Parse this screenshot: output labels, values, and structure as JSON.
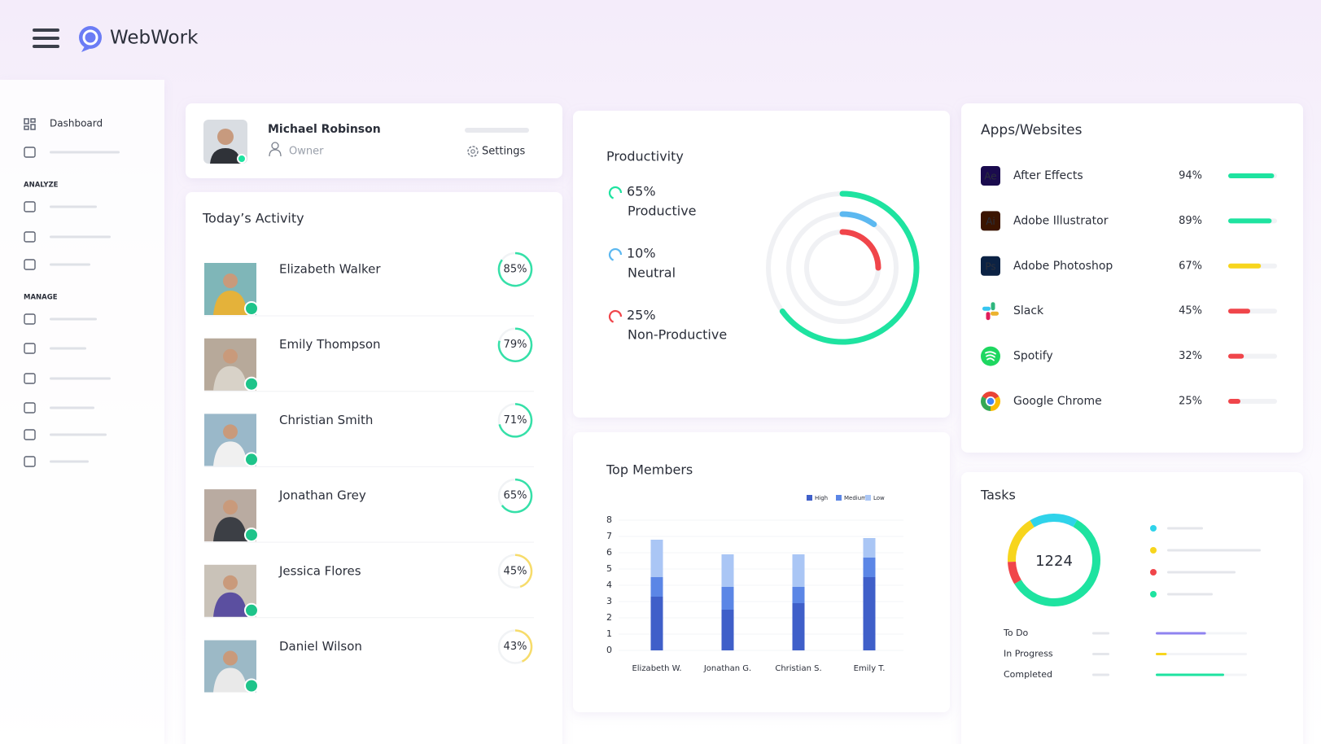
{
  "header": {
    "brand": "WebWork"
  },
  "sidebar": {
    "items": [
      "Dashboard"
    ],
    "sections": [
      "ANALYZE",
      "MANAGE"
    ]
  },
  "profile": {
    "name": "Michael Robinson",
    "role": "Owner",
    "settings": "Settings"
  },
  "activity": {
    "title": "Today’s Activity",
    "members": [
      {
        "name": "Elizabeth Walker",
        "value": 85,
        "label": "85%",
        "color": "#35e0a8"
      },
      {
        "name": "Emily Thompson",
        "value": 79,
        "label": "79%",
        "color": "#35e0a8"
      },
      {
        "name": "Christian Smith",
        "value": 71,
        "label": "71%",
        "color": "#35e0a8"
      },
      {
        "name": "Jonathan Grey",
        "value": 65,
        "label": "65%",
        "color": "#35e0a8"
      },
      {
        "name": "Jessica Flores",
        "value": 45,
        "label": "45%",
        "color": "#f7dc6a"
      },
      {
        "name": "Daniel Wilson",
        "value": 43,
        "label": "43%",
        "color": "#f7dc6a"
      }
    ]
  },
  "productivity": {
    "title": "Productivity",
    "segments": [
      {
        "name": "Productive",
        "value": 65,
        "label": "65%",
        "color": "#1ee3a0"
      },
      {
        "name": "Neutral",
        "value": 10,
        "label": "10%",
        "color": "#5cb8f0"
      },
      {
        "name": "Non-Productive",
        "value": 25,
        "label": "25%",
        "color": "#f0454a"
      }
    ]
  },
  "top_members": {
    "type": "bar",
    "title": "Top Members",
    "categories": [
      "Elizabeth W.",
      "Jonathan G.",
      "Christian S.",
      "Emily T."
    ],
    "series": [
      {
        "name": "High",
        "color": "#3f5fc9",
        "values": [
          3.3,
          2.5,
          2.9,
          4.5
        ]
      },
      {
        "name": "Medium",
        "color": "#5b86e6",
        "values": [
          1.2,
          1.4,
          1.0,
          1.2
        ]
      },
      {
        "name": "Low",
        "color": "#aac6f5",
        "values": [
          2.3,
          2.0,
          2.0,
          1.2
        ]
      }
    ],
    "ylim": [
      0,
      8
    ],
    "yticks": [
      0,
      1,
      2,
      3,
      4,
      5,
      6,
      7,
      8
    ],
    "stacked": true
  },
  "apps": {
    "title": "Apps/Websites",
    "items": [
      {
        "name": "After Effects",
        "icon": "Ae",
        "value": 94,
        "label": "94%",
        "color": "#1ee3a0"
      },
      {
        "name": "Adobe Illustrator",
        "icon": "Ai",
        "value": 89,
        "label": "89%",
        "color": "#1ee3a0"
      },
      {
        "name": "Adobe Photoshop",
        "icon": "Ps",
        "value": 67,
        "label": "67%",
        "color": "#f7d51d"
      },
      {
        "name": "Slack",
        "value": 45,
        "label": "45%",
        "color": "#f0454a"
      },
      {
        "name": "Spotify",
        "value": 32,
        "label": "32%",
        "color": "#f0454a"
      },
      {
        "name": "Google Chrome",
        "value": 25,
        "label": "25%",
        "color": "#f0454a"
      }
    ]
  },
  "tasks": {
    "title": "Tasks",
    "total": 1224,
    "segments": [
      {
        "value": 17,
        "color": "#2fd3ea"
      },
      {
        "value": 17,
        "color": "#f7d51d"
      },
      {
        "value": 8,
        "color": "#f0454a"
      },
      {
        "value": 58,
        "color": "#1ee3a0"
      }
    ],
    "rows": [
      {
        "name": "To Do",
        "value": 55,
        "color": "#8f83f0"
      },
      {
        "name": "In Progress",
        "value": 12,
        "color": "#f7d51d"
      },
      {
        "name": "Completed",
        "value": 75,
        "color": "#1ee3a0"
      }
    ]
  }
}
